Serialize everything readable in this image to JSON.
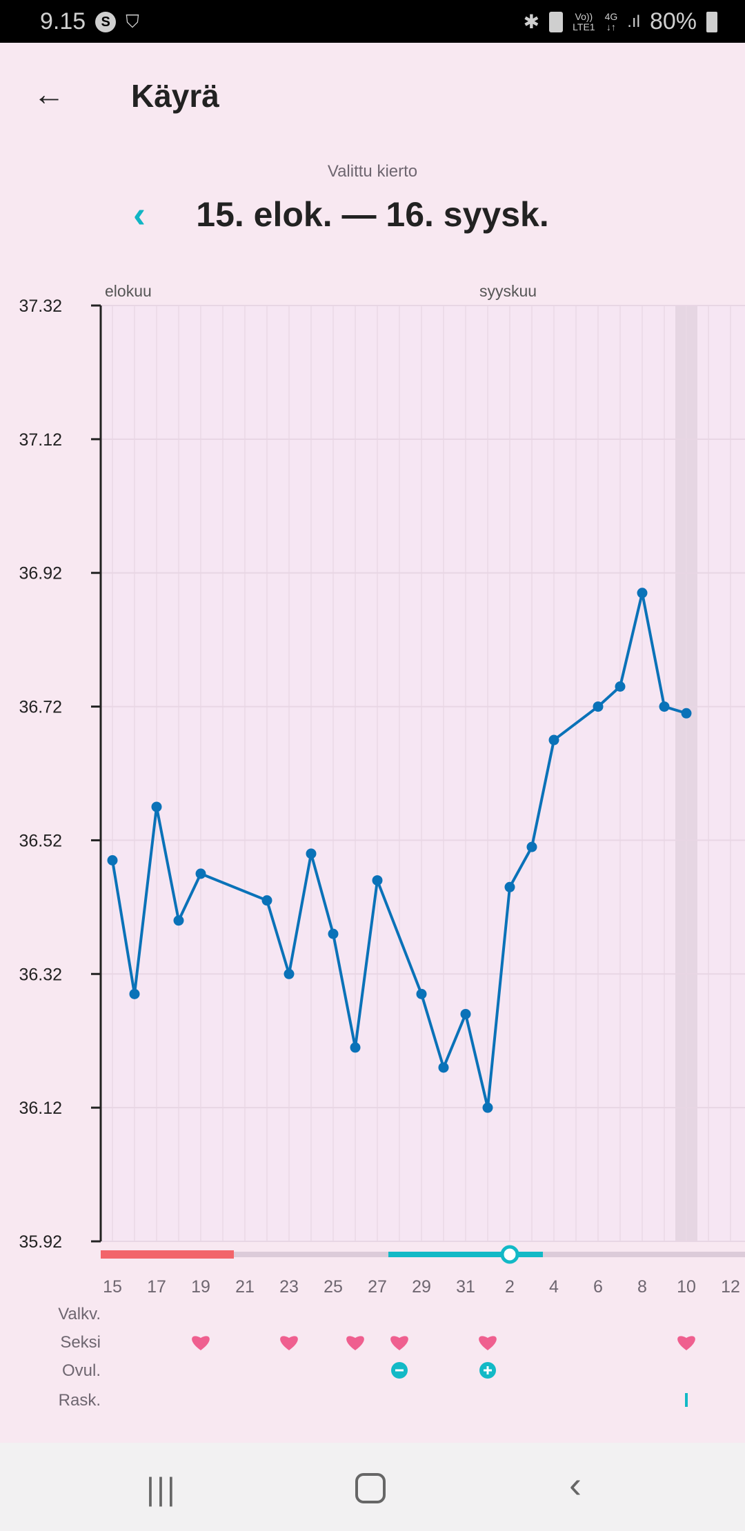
{
  "status_bar": {
    "time": "9.15",
    "network": "4G",
    "volte": "Vo))",
    "lte": "LTE1",
    "battery": "80%",
    "icons": [
      "s-circle-icon",
      "shield-check-icon",
      "bluetooth-icon",
      "battery-saver-icon",
      "signal-icon",
      "battery-icon"
    ]
  },
  "header": {
    "title": "Käyrä",
    "back_icon": "arrow-left-icon"
  },
  "cycle": {
    "label": "Valittu kierto",
    "range": "15. elok. — 16. syysk.",
    "prev_icon": "chevron-left-icon"
  },
  "colors": {
    "line": "#0a72b8",
    "period": "#f2646a",
    "fertile": "#13b9c6",
    "heart": "#ef5f8f",
    "background": "#f8e8f1"
  },
  "chart_data": {
    "type": "line",
    "months": [
      {
        "label": "elokuu",
        "start": "2019-08-15"
      },
      {
        "label": "syyskuu",
        "start": "2019-09-01"
      }
    ],
    "x_range": [
      "2019-08-15",
      "2019-09-12"
    ],
    "x_tick_labels": [
      "15",
      "17",
      "19",
      "21",
      "23",
      "25",
      "27",
      "29",
      "31",
      "2",
      "4",
      "6",
      "8",
      "10",
      "12"
    ],
    "y_ticks": [
      "37.32",
      "37.12",
      "36.92",
      "36.72",
      "36.52",
      "36.32",
      "36.12",
      "35.92"
    ],
    "ylim": [
      35.92,
      37.32
    ],
    "grid": true,
    "highlight_day": "2019-09-10",
    "series": [
      {
        "points": [
          [
            "2019-08-15",
            36.49
          ],
          [
            "2019-08-16",
            36.29
          ],
          [
            "2019-08-17",
            36.57
          ],
          [
            "2019-08-18",
            36.4
          ],
          [
            "2019-08-19",
            36.47
          ],
          [
            "2019-08-22",
            36.43
          ],
          [
            "2019-08-23",
            36.32
          ],
          [
            "2019-08-24",
            36.5
          ],
          [
            "2019-08-25",
            36.38
          ],
          [
            "2019-08-26",
            36.21
          ],
          [
            "2019-08-27",
            36.46
          ],
          [
            "2019-08-29",
            36.29
          ],
          [
            "2019-08-30",
            36.18
          ],
          [
            "2019-08-31",
            36.26
          ],
          [
            "2019-09-01",
            36.12
          ],
          [
            "2019-09-02",
            36.45
          ],
          [
            "2019-09-03",
            36.51
          ],
          [
            "2019-09-04",
            36.67
          ],
          [
            "2019-09-06",
            36.72
          ],
          [
            "2019-09-07",
            36.75
          ],
          [
            "2019-09-08",
            36.89
          ],
          [
            "2019-09-09",
            36.72
          ],
          [
            "2019-09-10",
            36.71
          ]
        ]
      }
    ],
    "period": {
      "start": "2019-08-15",
      "end": "2019-08-20"
    },
    "fertile_window": {
      "start": "2019-08-28",
      "end": "2019-09-03"
    },
    "ovulation_day": "2019-09-02",
    "rows": [
      {
        "label": "Valkv.",
        "marks": []
      },
      {
        "label": "Seksi",
        "icon": "heart-icon",
        "marks": [
          "2019-08-19",
          "2019-08-23",
          "2019-08-26",
          "2019-08-28",
          "2019-09-01",
          "2019-09-10"
        ]
      },
      {
        "label": "Ovul.",
        "marks": [
          {
            "date": "2019-08-28",
            "icon": "minus-circle-icon"
          },
          {
            "date": "2019-09-01",
            "icon": "plus-circle-icon"
          }
        ]
      },
      {
        "label": "Rask.",
        "marks": [
          {
            "date": "2019-09-10",
            "icon": "bar-icon"
          }
        ]
      }
    ]
  },
  "nav_bar": {
    "icons": [
      "recents-icon",
      "home-icon",
      "back-icon"
    ]
  }
}
